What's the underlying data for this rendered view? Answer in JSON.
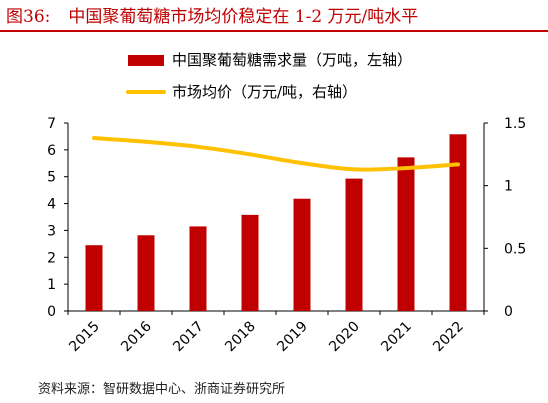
{
  "figure": {
    "number": "图36:",
    "title": "中国聚葡萄糖市场均价稳定在 1-2 万元/吨水平",
    "source": "资料来源：智研数据中心、浙商证券研究所"
  },
  "chart_data": {
    "type": "bar+line",
    "categories": [
      "2015",
      "2016",
      "2017",
      "2018",
      "2019",
      "2020",
      "2021",
      "2022"
    ],
    "series": [
      {
        "name": "中国聚葡萄糖需求量（万吨，左轴）",
        "type": "bar",
        "axis": "left",
        "color": "#c00000",
        "values": [
          2.45,
          2.82,
          3.15,
          3.58,
          4.18,
          4.93,
          5.72,
          6.58
        ]
      },
      {
        "name": "市场均价（万元/吨，右轴）",
        "type": "line",
        "axis": "right",
        "color": "#ffc000",
        "values": [
          1.38,
          1.35,
          1.31,
          1.25,
          1.18,
          1.13,
          1.14,
          1.17
        ]
      }
    ],
    "y_left": {
      "min": 0,
      "max": 7,
      "ticks": [
        "0",
        "1",
        "2",
        "3",
        "4",
        "5",
        "6",
        "7"
      ]
    },
    "y_right": {
      "min": 0,
      "max": 1.5,
      "ticks": [
        "0",
        "0.5",
        "1",
        "1.5"
      ]
    },
    "grid": false,
    "legend_position": "top"
  }
}
